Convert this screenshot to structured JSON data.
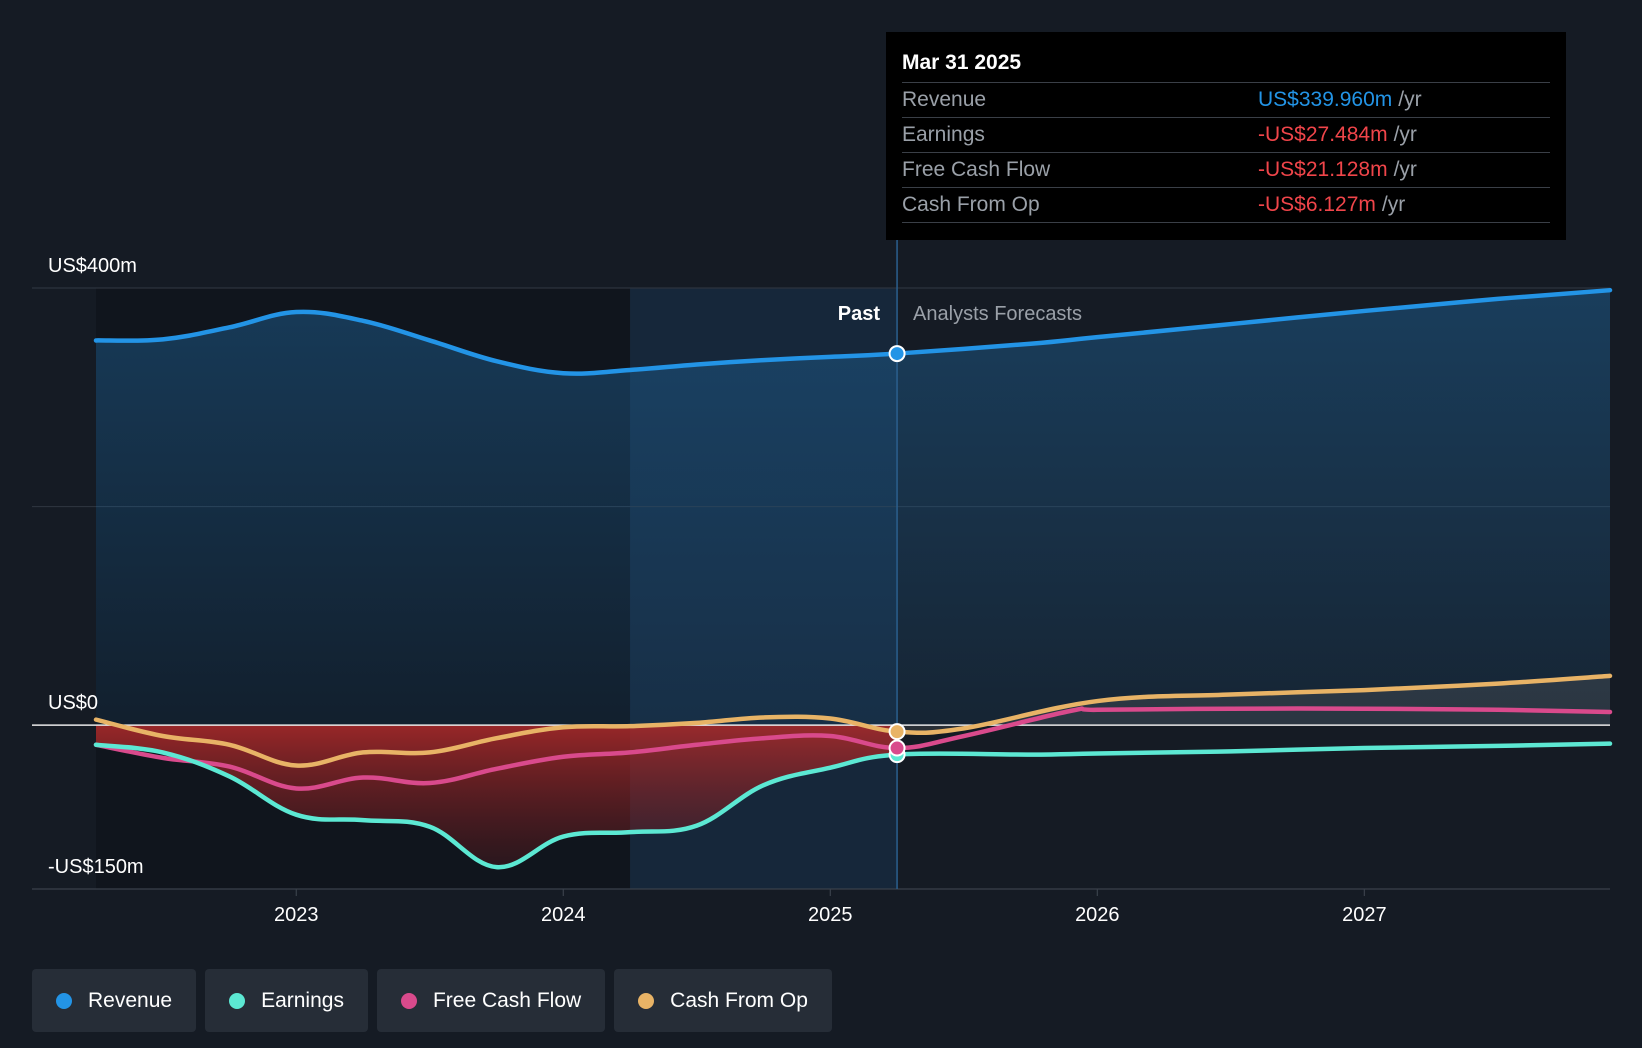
{
  "colors": {
    "revenue": "#2394e6",
    "earnings": "#5ce8d3",
    "fcf": "#d94a8c",
    "cfo": "#e8b366",
    "background": "#151b24"
  },
  "tooltip": {
    "date": "Mar 31 2025",
    "unit": "/yr",
    "rows": [
      {
        "label": "Revenue",
        "value": "US$339.960m",
        "color": "#2394e6"
      },
      {
        "label": "Earnings",
        "value": "-US$27.484m",
        "color": "#f0454a"
      },
      {
        "label": "Free Cash Flow",
        "value": "-US$21.128m",
        "color": "#f0454a"
      },
      {
        "label": "Cash From Op",
        "value": "-US$6.127m",
        "color": "#f0454a"
      }
    ]
  },
  "chart_data": {
    "type": "line",
    "y_top_label": "US$400m",
    "y_zero_label": "US$0",
    "y_bottom_label": "-US$150m",
    "ylim": [
      -150,
      400
    ],
    "xlim": [
      2022.25,
      2027.92
    ],
    "past_label": "Past",
    "forecast_label": "Analysts Forecasts",
    "divider_x": 2025.25,
    "x_ticks": [
      2023,
      2024,
      2025,
      2026,
      2027
    ],
    "x_tick_labels": [
      "2023",
      "2024",
      "2025",
      "2026",
      "2027"
    ],
    "grid": true,
    "legend_position": "bottom-left",
    "series": [
      {
        "name": "Revenue",
        "key": "revenue",
        "x": [
          2022.25,
          2022.5,
          2022.75,
          2023.0,
          2023.25,
          2023.5,
          2023.75,
          2024.0,
          2024.25,
          2024.5,
          2024.75,
          2025.0,
          2025.25,
          2025.75,
          2026.0,
          2026.5,
          2027.0,
          2027.5,
          2027.92
        ],
        "y": [
          352,
          353,
          364,
          378,
          370,
          352,
          333,
          322,
          325,
          330,
          334,
          337,
          340,
          349,
          355,
          367,
          379,
          390,
          398
        ]
      },
      {
        "name": "Earnings",
        "key": "earnings",
        "x": [
          2022.25,
          2022.5,
          2022.75,
          2023.0,
          2023.25,
          2023.5,
          2023.75,
          2024.0,
          2024.25,
          2024.5,
          2024.75,
          2025.0,
          2025.25,
          2025.75,
          2026.0,
          2026.5,
          2027.0,
          2027.5,
          2027.92
        ],
        "y": [
          -18,
          -25,
          -47,
          -82,
          -87,
          -93,
          -130,
          -102,
          -98,
          -92,
          -55,
          -39,
          -27,
          -27,
          -26,
          -24,
          -21,
          -19,
          -17
        ]
      },
      {
        "name": "Free Cash Flow",
        "key": "fcf",
        "x": [
          2022.25,
          2022.5,
          2022.75,
          2023.0,
          2023.25,
          2023.5,
          2023.75,
          2024.0,
          2024.25,
          2024.5,
          2024.75,
          2025.0,
          2025.25,
          2025.5,
          2025.9,
          2026.0,
          2026.5,
          2027.0,
          2027.5,
          2027.92
        ],
        "y": [
          -18,
          -30,
          -38,
          -58,
          -48,
          -53,
          -40,
          -29,
          -25,
          -18,
          -12,
          -10,
          -21,
          -10,
          13,
          14,
          15,
          15,
          14,
          12
        ]
      },
      {
        "name": "Cash From Op",
        "key": "cfo",
        "x": [
          2022.25,
          2022.5,
          2022.75,
          2023.0,
          2023.25,
          2023.5,
          2023.75,
          2024.0,
          2024.25,
          2024.5,
          2024.75,
          2025.0,
          2025.25,
          2025.5,
          2026.0,
          2026.5,
          2027.0,
          2027.5,
          2027.92
        ],
        "y": [
          5,
          -10,
          -18,
          -37,
          -25,
          -25,
          -12,
          -2,
          -1,
          2,
          7,
          6,
          -6,
          -3,
          22,
          28,
          32,
          38,
          45
        ]
      }
    ]
  },
  "legend": [
    {
      "label": "Revenue",
      "color": "#2394e6"
    },
    {
      "label": "Earnings",
      "color": "#5ce8d3"
    },
    {
      "label": "Free Cash Flow",
      "color": "#d94a8c"
    },
    {
      "label": "Cash From Op",
      "color": "#e8b366"
    }
  ]
}
